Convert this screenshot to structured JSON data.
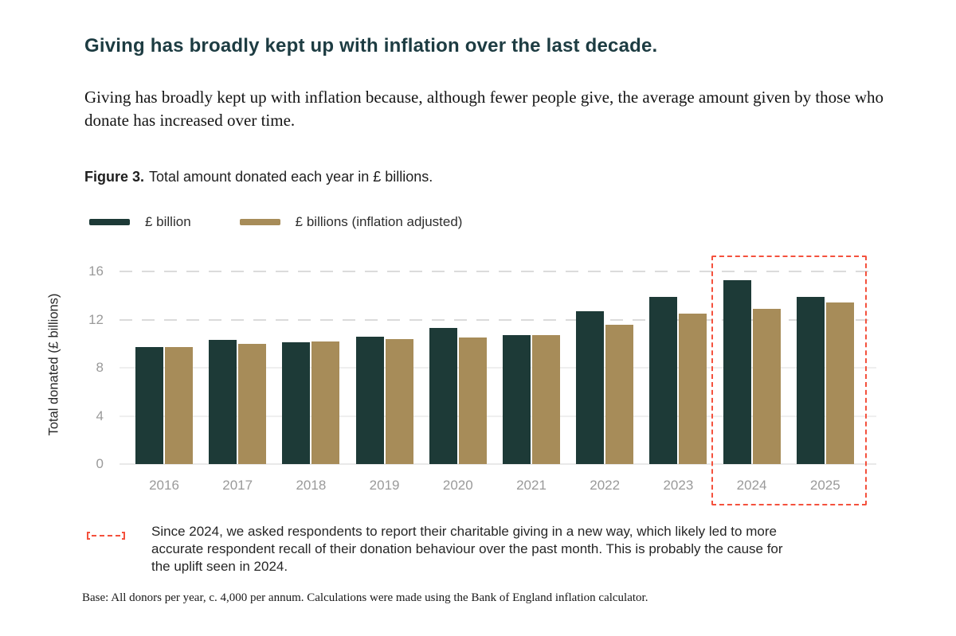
{
  "page": {
    "heading": "Giving has broadly kept up with inflation over the last decade.",
    "subheading": "Giving has broadly kept up with inflation because, although fewer people give, the average amount given by those who donate has increased over time.",
    "figure_label": "Figure 3.",
    "figure_caption": "Total amount donated each year in £ billions.",
    "highlight_note": "Since 2024, we asked respondents to report their charitable giving in a new way, which likely led to more accurate respondent recall of their donation behaviour over the past month. This is probably the cause for the uplift seen in 2024.",
    "base_note": "Base: All donors per year, c. 4,000 per annum. Calculations were made using the Bank of England inflation calculator."
  },
  "chart_data": {
    "type": "bar",
    "title": "Figure 3. Total amount donated each year in £ billions.",
    "categories": [
      "2016",
      "2017",
      "2018",
      "2019",
      "2020",
      "2021",
      "2022",
      "2023",
      "2024",
      "2025"
    ],
    "series": [
      {
        "name": "£ billion",
        "color": "#1d3a37",
        "values": [
          9.7,
          10.3,
          10.1,
          10.6,
          11.3,
          10.7,
          12.7,
          13.9,
          15.3,
          13.9
        ]
      },
      {
        "name": "£ billions (inflation adjusted)",
        "color": "#a78c59",
        "values": [
          9.7,
          10.0,
          10.2,
          10.4,
          10.5,
          10.7,
          11.6,
          12.5,
          12.9,
          13.4
        ]
      }
    ],
    "xlabel": "",
    "ylabel": "Total donated (£ billions)",
    "yticks": [
      0,
      4,
      8,
      12,
      16
    ],
    "ylim": [
      0,
      16
    ],
    "grid": "horizontal-dashed",
    "legend_position": "top-left",
    "highlight": {
      "categories": [
        "2024",
        "2025"
      ],
      "style": "dashed-box",
      "color": "#f4513d"
    }
  }
}
